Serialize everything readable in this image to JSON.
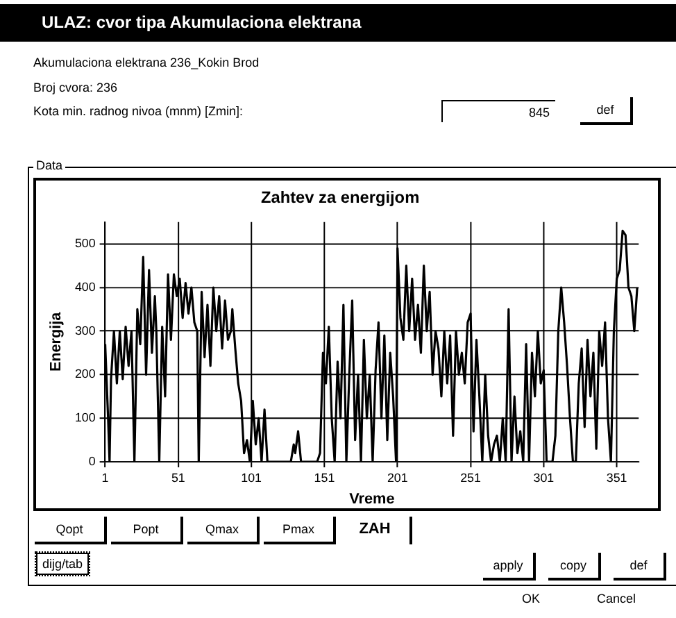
{
  "chart_data": {
    "type": "line",
    "title": "Zahtev za energijom",
    "xlabel": "Vreme",
    "ylabel": "Energija",
    "xlim": [
      1,
      366
    ],
    "xticks": [
      1,
      51,
      101,
      151,
      201,
      251,
      301,
      351
    ],
    "ylim": [
      0,
      550
    ],
    "yticks": [
      0,
      100,
      200,
      300,
      400,
      500
    ],
    "grid": true,
    "legend": false,
    "marker": "none",
    "line_style": "solid",
    "series": [
      {
        "color": "#000000",
        "x": [
          1,
          3,
          4,
          5,
          7,
          9,
          11,
          13,
          15,
          17,
          19,
          21,
          23,
          25,
          27,
          29,
          31,
          33,
          35,
          36,
          38,
          40,
          42,
          44,
          46,
          48,
          50,
          52,
          54,
          56,
          58,
          60,
          62,
          64,
          65,
          67,
          69,
          71,
          73,
          75,
          77,
          79,
          81,
          83,
          85,
          87,
          88,
          90,
          92,
          94,
          96,
          98,
          100,
          102,
          104,
          106,
          108,
          110,
          112,
          120,
          128,
          130,
          131,
          133,
          135,
          146,
          148,
          150,
          152,
          154,
          156,
          158,
          160,
          162,
          164,
          166,
          168,
          170,
          172,
          174,
          176,
          178,
          180,
          182,
          184,
          186,
          188,
          190,
          192,
          194,
          196,
          198,
          200,
          201,
          203,
          205,
          207,
          209,
          211,
          213,
          215,
          217,
          219,
          221,
          223,
          225,
          227,
          229,
          231,
          233,
          235,
          237,
          239,
          241,
          243,
          245,
          247,
          249,
          251,
          253,
          255,
          257,
          259,
          261,
          263,
          265,
          267,
          269,
          271,
          273,
          275,
          277,
          279,
          281,
          283,
          285,
          287,
          289,
          291,
          293,
          295,
          297,
          299,
          301,
          303,
          307,
          309,
          311,
          313,
          315,
          317,
          319,
          321,
          323,
          325,
          327,
          329,
          331,
          333,
          335,
          337,
          339,
          341,
          343,
          345,
          347,
          349,
          351,
          353,
          355,
          357,
          359,
          361,
          363,
          365
        ],
        "values": [
          270,
          100,
          0,
          190,
          300,
          180,
          300,
          190,
          310,
          220,
          300,
          0,
          350,
          270,
          470,
          200,
          440,
          250,
          380,
          300,
          0,
          310,
          150,
          430,
          280,
          430,
          380,
          420,
          330,
          410,
          340,
          400,
          320,
          300,
          0,
          390,
          240,
          360,
          220,
          400,
          300,
          380,
          260,
          370,
          280,
          300,
          350,
          260,
          180,
          140,
          20,
          50,
          0,
          140,
          40,
          100,
          0,
          120,
          0,
          0,
          0,
          40,
          20,
          70,
          0,
          0,
          20,
          250,
          180,
          310,
          100,
          0,
          230,
          100,
          360,
          0,
          200,
          370,
          50,
          200,
          0,
          280,
          100,
          200,
          0,
          210,
          320,
          100,
          290,
          50,
          250,
          150,
          0,
          490,
          330,
          280,
          450,
          300,
          420,
          280,
          360,
          250,
          450,
          300,
          390,
          200,
          300,
          260,
          150,
          300,
          180,
          290,
          60,
          300,
          200,
          250,
          180,
          320,
          340,
          70,
          280,
          150,
          0,
          200,
          60,
          0,
          40,
          60,
          0,
          100,
          0,
          350,
          0,
          150,
          20,
          70,
          0,
          270,
          0,
          250,
          150,
          300,
          180,
          210,
          0,
          0,
          60,
          300,
          400,
          320,
          220,
          100,
          0,
          0,
          180,
          260,
          80,
          280,
          150,
          250,
          30,
          300,
          220,
          320,
          100,
          0,
          300,
          420,
          440,
          530,
          520,
          400,
          380,
          300,
          400
        ]
      }
    ],
    "annotations": [
      "ULAZ: cvor tipa Akumulaciona elektrana",
      "Akumulaciona elektrana   236_Kokin Brod",
      "Broj cvora:  236",
      "Kota min. radnog nivoa (mnm)    [Zmin]:",
      "845",
      "def",
      "Data",
      "Qopt",
      "Popt",
      "Qmax",
      "Pmax",
      "ZAH",
      "dijg/tab",
      "apply",
      "copy",
      "def",
      "OK",
      "Cancel"
    ]
  }
}
